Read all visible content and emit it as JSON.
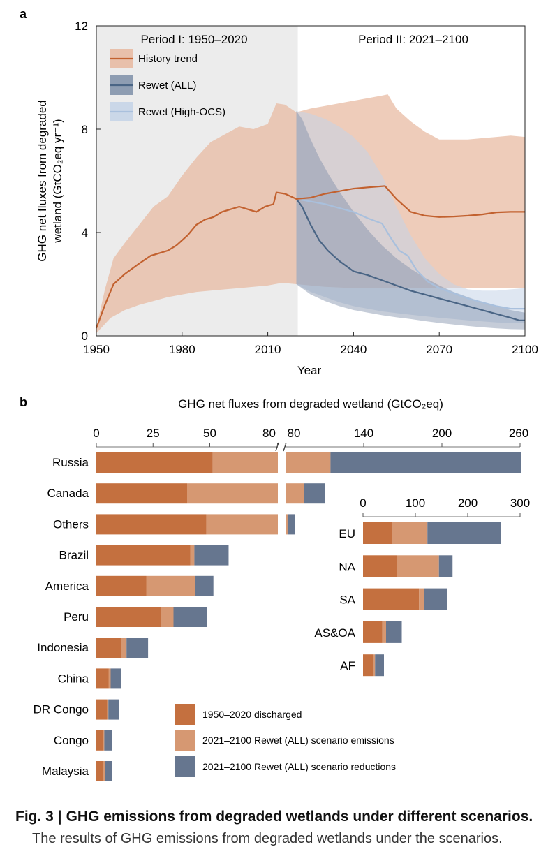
{
  "figure": {
    "caption_label": "Fig. 3 |",
    "caption_title": "GHG emissions from degraded wetlands under different scenarios.",
    "caption_continuation": "The results of GHG emissions from degraded wetlands under the scenarios."
  },
  "colors": {
    "history": "#c2612f",
    "history_band": "#e7b9a0",
    "rewet_all": "#4a6585",
    "rewet_all_band": "#7e8fa8",
    "rewet_high": "#a9c0dd",
    "rewet_high_band": "#c4d3e7",
    "discharged": "#c4703f",
    "emissions": "#d69872",
    "reductions": "#66768f",
    "period1_bg": "#ececec"
  },
  "chart_data": [
    {
      "panel": "a",
      "type": "line",
      "title": "",
      "xlabel": "Year",
      "ylabel_line1": "GHG net fluxes from degraded",
      "ylabel_line2": "wetland (GtCO₂eq yr⁻¹)",
      "xlim": [
        1950,
        2100
      ],
      "ylim": [
        0,
        12
      ],
      "xticks": [
        1950,
        1980,
        2010,
        2040,
        2070,
        2100
      ],
      "yticks": [
        0,
        4,
        8,
        12
      ],
      "period1_label": "Period I: 1950–2020",
      "period2_label": "Period II: 2021–2100",
      "period_split": 2020.5,
      "legend": [
        "History trend",
        "Rewet (ALL)",
        "Rewet (High-OCS)"
      ],
      "series": [
        {
          "name": "History trend",
          "x": [
            1950,
            1953,
            1956,
            1960,
            1965,
            1969,
            1972,
            1975,
            1978,
            1982,
            1985,
            1988,
            1991,
            1994,
            1997,
            2000,
            2003,
            2006,
            2009,
            2012,
            2013,
            2016,
            2020,
            2025,
            2030,
            2035,
            2040,
            2045,
            2051,
            2055,
            2060,
            2065,
            2070,
            2075,
            2080,
            2085,
            2090,
            2095,
            2100
          ],
          "y": [
            0.3,
            1.2,
            2.0,
            2.4,
            2.8,
            3.1,
            3.2,
            3.3,
            3.5,
            3.9,
            4.3,
            4.5,
            4.6,
            4.8,
            4.9,
            5.0,
            4.9,
            4.8,
            5.0,
            5.1,
            5.55,
            5.5,
            5.3,
            5.35,
            5.5,
            5.6,
            5.7,
            5.75,
            5.8,
            5.3,
            4.8,
            4.65,
            4.6,
            4.62,
            4.65,
            4.7,
            4.78,
            4.8,
            4.8
          ]
        },
        {
          "name": "History trend band upper",
          "x": [
            1950,
            1953,
            1956,
            1960,
            1965,
            1970,
            1975,
            1980,
            1985,
            1990,
            1995,
            2000,
            2005,
            2010,
            2013,
            2016,
            2020,
            2025,
            2030,
            2035,
            2040,
            2045,
            2050,
            2052,
            2055,
            2060,
            2065,
            2070,
            2075,
            2080,
            2085,
            2090,
            2095,
            2100
          ],
          "y": [
            0.3,
            1.8,
            3.0,
            3.6,
            4.3,
            5.0,
            5.4,
            6.2,
            6.9,
            7.5,
            7.8,
            8.1,
            8.0,
            8.2,
            9.0,
            8.95,
            8.65,
            8.8,
            8.9,
            9.0,
            9.1,
            9.2,
            9.3,
            9.35,
            8.8,
            8.3,
            7.9,
            7.6,
            7.6,
            7.6,
            7.65,
            7.7,
            7.75,
            7.7
          ]
        },
        {
          "name": "History trend band lower",
          "x": [
            1950,
            1955,
            1960,
            1965,
            1970,
            1975,
            1980,
            1985,
            1990,
            1995,
            2000,
            2005,
            2010,
            2015,
            2020,
            2030,
            2040,
            2050,
            2060,
            2070,
            2080,
            2090,
            2100
          ],
          "y": [
            0.1,
            0.7,
            1.0,
            1.2,
            1.35,
            1.5,
            1.6,
            1.7,
            1.75,
            1.8,
            1.85,
            1.9,
            1.95,
            2.05,
            2.0,
            1.9,
            1.85,
            1.85,
            1.85,
            1.85,
            1.85,
            1.85,
            1.85
          ]
        },
        {
          "name": "Rewet (ALL)",
          "x": [
            2020,
            2022,
            2025,
            2028,
            2031,
            2035,
            2040,
            2045,
            2050,
            2055,
            2060,
            2065,
            2070,
            2075,
            2080,
            2085,
            2090,
            2095,
            2098,
            2100
          ],
          "y": [
            5.3,
            5.0,
            4.3,
            3.7,
            3.3,
            2.9,
            2.5,
            2.35,
            2.15,
            1.95,
            1.75,
            1.6,
            1.45,
            1.3,
            1.15,
            1.0,
            0.85,
            0.7,
            0.6,
            0.6
          ]
        },
        {
          "name": "Rewet (ALL) band upper",
          "x": [
            2020,
            2022,
            2025,
            2028,
            2031,
            2035,
            2040,
            2045,
            2050,
            2055,
            2060,
            2065,
            2070,
            2075,
            2080,
            2085,
            2090,
            2095,
            2100
          ],
          "y": [
            8.7,
            8.4,
            7.6,
            6.9,
            6.3,
            5.6,
            4.8,
            4.1,
            3.5,
            3.0,
            2.6,
            2.25,
            1.95,
            1.7,
            1.5,
            1.3,
            1.15,
            1.0,
            0.9
          ]
        },
        {
          "name": "Rewet (ALL) band lower",
          "x": [
            2020,
            2025,
            2030,
            2035,
            2040,
            2045,
            2050,
            2055,
            2060,
            2065,
            2070,
            2075,
            2080,
            2085,
            2090,
            2095,
            2100
          ],
          "y": [
            2.0,
            1.6,
            1.35,
            1.15,
            1.0,
            0.9,
            0.8,
            0.72,
            0.65,
            0.57,
            0.5,
            0.44,
            0.38,
            0.33,
            0.29,
            0.26,
            0.25
          ]
        },
        {
          "name": "Rewet (High-OCS)",
          "x": [
            2020,
            2025,
            2030,
            2035,
            2040,
            2045,
            2050,
            2053,
            2056,
            2059,
            2062,
            2066,
            2070,
            2075,
            2080,
            2085,
            2090,
            2095,
            2100
          ],
          "y": [
            5.3,
            5.2,
            5.1,
            4.95,
            4.8,
            4.55,
            4.35,
            3.8,
            3.3,
            3.1,
            2.55,
            2.1,
            1.85,
            1.65,
            1.45,
            1.3,
            1.15,
            1.05,
            1.05
          ]
        },
        {
          "name": "Rewet (High-OCS) band upper",
          "x": [
            2020,
            2025,
            2030,
            2035,
            2040,
            2045,
            2050,
            2055,
            2060,
            2065,
            2070,
            2075,
            2080,
            2085,
            2090,
            2095,
            2100
          ],
          "y": [
            8.7,
            8.6,
            8.4,
            8.1,
            7.7,
            7.1,
            6.2,
            5.0,
            3.9,
            3.0,
            2.4,
            2.0,
            1.8,
            1.75,
            1.75,
            1.8,
            1.85
          ]
        },
        {
          "name": "Rewet (High-OCS) band lower",
          "x": [
            2020,
            2025,
            2030,
            2035,
            2040,
            2045,
            2050,
            2055,
            2060,
            2065,
            2070,
            2075,
            2080,
            2085,
            2090,
            2095,
            2100
          ],
          "y": [
            2.0,
            1.7,
            1.5,
            1.3,
            1.15,
            1.05,
            0.95,
            0.88,
            0.82,
            0.76,
            0.7,
            0.65,
            0.6,
            0.56,
            0.52,
            0.5,
            0.5
          ]
        }
      ]
    },
    {
      "panel": "b",
      "type": "bar",
      "orientation": "horizontal",
      "stacked": true,
      "axis_break": true,
      "title": "GHG net fluxes from degraded wetland (GtCO₂eq)",
      "xticks_left": [
        0,
        25,
        50,
        80
      ],
      "xticks_right": [
        80,
        140,
        200,
        260
      ],
      "categories": [
        "Russia",
        "Canada",
        "Others",
        "Brazil",
        "America",
        "Peru",
        "Indonesia",
        "China",
        "DR Congo",
        "Congo",
        "Malaysia"
      ],
      "series": [
        {
          "name": "1950–2020 discharged",
          "values": [
            51.3,
            40.0,
            48.5,
            41.4,
            22.0,
            28.4,
            11.0,
            5.5,
            4.8,
            3.0,
            3.0
          ]
        },
        {
          "name": "2021–2100 Rewet (ALL) scenario emissions",
          "values": [
            63.2,
            54.0,
            33.1,
            1.8,
            21.5,
            5.6,
            2.3,
            0.8,
            0.5,
            0.5,
            1.0
          ]
        },
        {
          "name": "2021–2100 Rewet (ALL) scenario reductions",
          "values": [
            146.5,
            16.0,
            5.5,
            15.1,
            8.1,
            14.8,
            9.5,
            4.7,
            4.7,
            3.5,
            3.0
          ]
        }
      ],
      "legend": [
        "1950–2020 discharged",
        "2021–2100 Rewet (ALL) scenario emissions",
        "2021–2100 Rewet (ALL) scenario reductions"
      ]
    },
    {
      "panel": "b-inset",
      "type": "bar",
      "orientation": "horizontal",
      "stacked": true,
      "xlim": [
        0,
        300
      ],
      "xticks": [
        0,
        100,
        200,
        300
      ],
      "categories": [
        "EU",
        "NA",
        "SA",
        "AS&OA",
        "AF"
      ],
      "series": [
        {
          "name": "1950–2020 discharged",
          "values": [
            55,
            65,
            107,
            37,
            20
          ]
        },
        {
          "name": "2021–2100 Rewet (ALL) scenario emissions",
          "values": [
            68,
            80,
            10,
            7,
            3
          ]
        },
        {
          "name": "2021–2100 Rewet (ALL) scenario reductions",
          "values": [
            140,
            26,
            44,
            30,
            17
          ]
        }
      ]
    }
  ]
}
